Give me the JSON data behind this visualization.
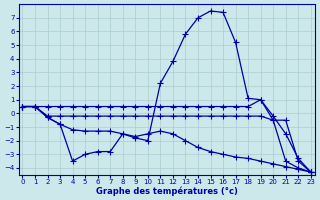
{
  "xlabel": "Graphe des températures (°c)",
  "bg_color": "#cce8ea",
  "grid_color": "#aacccc",
  "line_color": "#0000aa",
  "ylim": [
    -4.5,
    8.0
  ],
  "xlim": [
    -0.3,
    23.3
  ],
  "yticks": [
    -4,
    -3,
    -2,
    -1,
    0,
    1,
    2,
    3,
    4,
    5,
    6,
    7
  ],
  "xticks": [
    0,
    1,
    2,
    3,
    4,
    5,
    6,
    7,
    8,
    9,
    10,
    11,
    12,
    13,
    14,
    15,
    16,
    17,
    18,
    19,
    20,
    21,
    22,
    23
  ],
  "line1_x": [
    0,
    1,
    2,
    3,
    4,
    5,
    6,
    7,
    8,
    9,
    10,
    11,
    12,
    13,
    14,
    15,
    16,
    17,
    18,
    19,
    20,
    21,
    22,
    23
  ],
  "line1_y": [
    0.5,
    0.5,
    0.5,
    0.5,
    0.5,
    0.5,
    0.5,
    0.5,
    0.5,
    0.5,
    0.5,
    0.5,
    0.5,
    0.5,
    0.5,
    0.5,
    0.5,
    0.5,
    0.5,
    1.0,
    -0.5,
    -3.5,
    -4.0,
    -4.3
  ],
  "line2_x": [
    0,
    1,
    2,
    3,
    4,
    5,
    6,
    7,
    8,
    9,
    10,
    11,
    12,
    13,
    14,
    15,
    16,
    17,
    18,
    19,
    20,
    21,
    22,
    23
  ],
  "line2_y": [
    0.5,
    0.5,
    -0.2,
    -0.2,
    -0.2,
    -0.2,
    -0.2,
    -0.2,
    -0.2,
    -0.2,
    -0.2,
    -0.2,
    -0.2,
    -0.2,
    -0.2,
    -0.2,
    -0.2,
    -0.2,
    -0.2,
    -0.2,
    -0.5,
    -0.5,
    -3.5,
    -4.3
  ],
  "line3_x": [
    0,
    1,
    2,
    3,
    4,
    5,
    6,
    7,
    8,
    9,
    10,
    11,
    12,
    13,
    14,
    15,
    16,
    17,
    18,
    19,
    20,
    21,
    22,
    23
  ],
  "line3_y": [
    0.5,
    0.5,
    -0.3,
    -0.8,
    -1.2,
    -1.3,
    -1.3,
    -1.3,
    -1.5,
    -1.7,
    -1.5,
    -1.3,
    -1.5,
    -2.0,
    -2.5,
    -2.8,
    -3.0,
    -3.2,
    -3.3,
    -3.5,
    -3.7,
    -3.9,
    -4.1,
    -4.3
  ],
  "line4_x": [
    0,
    1,
    2,
    3,
    4,
    5,
    6,
    7,
    8,
    9,
    10,
    11,
    12,
    13,
    14,
    15,
    16,
    17,
    18,
    19,
    20,
    21,
    22,
    23
  ],
  "line4_y": [
    0.5,
    0.5,
    -0.3,
    -0.8,
    -3.5,
    -3.0,
    -2.8,
    -2.8,
    -1.5,
    -1.8,
    -2.0,
    2.2,
    3.8,
    5.8,
    7.0,
    7.5,
    7.4,
    5.2,
    1.1,
    1.0,
    -0.2,
    -1.5,
    -3.3,
    -4.3
  ]
}
